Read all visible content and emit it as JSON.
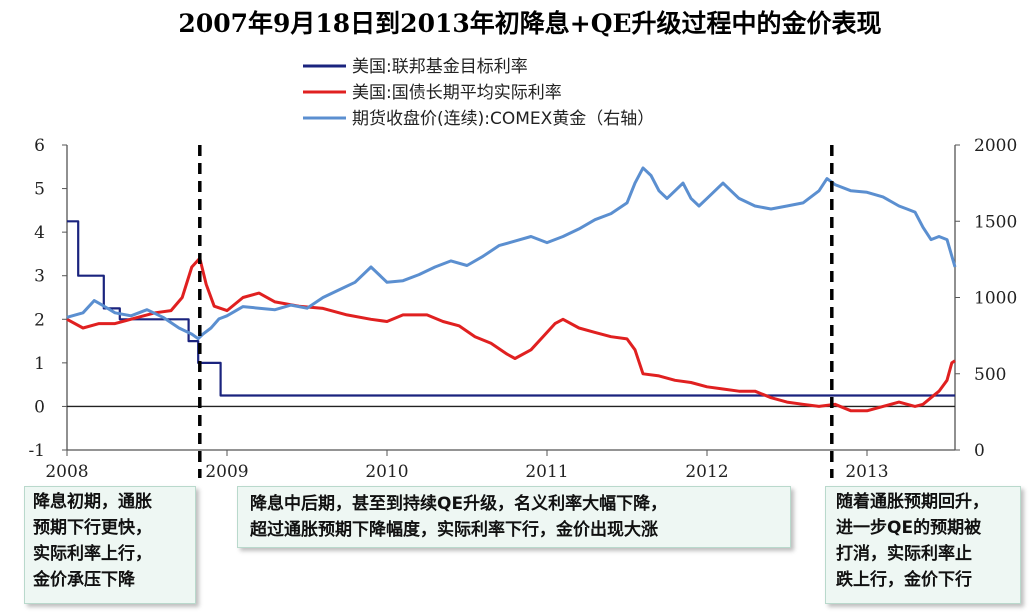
{
  "chart_data": {
    "type": "line",
    "title": "2007年9月18日到2013年初降息+QE升级过程中的金价表现",
    "legend_position": "top",
    "x_ticks": [
      "2008",
      "2009",
      "2010",
      "2011",
      "2012",
      "2013"
    ],
    "y_left_ticks": [
      "6",
      "5",
      "4",
      "3",
      "2",
      "1",
      "0",
      "-1"
    ],
    "y_left_range": [
      -1,
      6
    ],
    "y_right_ticks": [
      "2000",
      "1500",
      "1000",
      "500",
      "0"
    ],
    "y_right_range": [
      0,
      2000
    ],
    "x_range": [
      2008.0,
      2013.55
    ],
    "grid": false,
    "series": [
      {
        "name": "美国:联邦基金目标利率",
        "axis": "left",
        "color": "#1a237e",
        "points": [
          [
            2008.0,
            4.25
          ],
          [
            2008.07,
            4.25
          ],
          [
            2008.07,
            3.0
          ],
          [
            2008.23,
            3.0
          ],
          [
            2008.23,
            2.25
          ],
          [
            2008.33,
            2.25
          ],
          [
            2008.33,
            2.0
          ],
          [
            2008.76,
            2.0
          ],
          [
            2008.76,
            1.5
          ],
          [
            2008.82,
            1.5
          ],
          [
            2008.82,
            1.0
          ],
          [
            2008.96,
            1.0
          ],
          [
            2008.96,
            0.25
          ],
          [
            2013.55,
            0.25
          ]
        ]
      },
      {
        "name": "美国:国债长期平均实际利率",
        "axis": "left",
        "color": "#e02020",
        "points": [
          [
            2008.0,
            2.0
          ],
          [
            2008.1,
            1.8
          ],
          [
            2008.2,
            1.9
          ],
          [
            2008.3,
            1.9
          ],
          [
            2008.45,
            2.05
          ],
          [
            2008.55,
            2.15
          ],
          [
            2008.65,
            2.2
          ],
          [
            2008.72,
            2.5
          ],
          [
            2008.78,
            3.2
          ],
          [
            2008.83,
            3.4
          ],
          [
            2008.87,
            2.8
          ],
          [
            2008.92,
            2.3
          ],
          [
            2009.0,
            2.2
          ],
          [
            2009.1,
            2.5
          ],
          [
            2009.2,
            2.6
          ],
          [
            2009.3,
            2.4
          ],
          [
            2009.45,
            2.3
          ],
          [
            2009.6,
            2.25
          ],
          [
            2009.75,
            2.1
          ],
          [
            2009.9,
            2.0
          ],
          [
            2010.0,
            1.95
          ],
          [
            2010.1,
            2.1
          ],
          [
            2010.25,
            2.1
          ],
          [
            2010.35,
            1.95
          ],
          [
            2010.45,
            1.85
          ],
          [
            2010.55,
            1.6
          ],
          [
            2010.65,
            1.45
          ],
          [
            2010.75,
            1.2
          ],
          [
            2010.8,
            1.1
          ],
          [
            2010.9,
            1.3
          ],
          [
            2011.0,
            1.7
          ],
          [
            2011.05,
            1.9
          ],
          [
            2011.1,
            2.0
          ],
          [
            2011.2,
            1.8
          ],
          [
            2011.3,
            1.7
          ],
          [
            2011.4,
            1.6
          ],
          [
            2011.5,
            1.55
          ],
          [
            2011.55,
            1.3
          ],
          [
            2011.6,
            0.75
          ],
          [
            2011.7,
            0.7
          ],
          [
            2011.8,
            0.6
          ],
          [
            2011.9,
            0.55
          ],
          [
            2012.0,
            0.45
          ],
          [
            2012.1,
            0.4
          ],
          [
            2012.2,
            0.35
          ],
          [
            2012.3,
            0.35
          ],
          [
            2012.4,
            0.2
          ],
          [
            2012.5,
            0.1
          ],
          [
            2012.6,
            0.05
          ],
          [
            2012.7,
            0.0
          ],
          [
            2012.8,
            0.05
          ],
          [
            2012.9,
            -0.1
          ],
          [
            2013.0,
            -0.1
          ],
          [
            2013.1,
            0.0
          ],
          [
            2013.2,
            0.1
          ],
          [
            2013.3,
            0.0
          ],
          [
            2013.35,
            0.05
          ],
          [
            2013.4,
            0.2
          ],
          [
            2013.45,
            0.35
          ],
          [
            2013.5,
            0.6
          ],
          [
            2013.53,
            1.0
          ],
          [
            2013.55,
            1.05
          ]
        ]
      },
      {
        "name": "期货收盘价(连续):COMEX黄金（右轴）",
        "axis": "right",
        "color": "#5b8fd0",
        "points": [
          [
            2008.0,
            870
          ],
          [
            2008.1,
            900
          ],
          [
            2008.17,
            980
          ],
          [
            2008.22,
            950
          ],
          [
            2008.3,
            900
          ],
          [
            2008.4,
            880
          ],
          [
            2008.5,
            920
          ],
          [
            2008.6,
            870
          ],
          [
            2008.7,
            800
          ],
          [
            2008.78,
            760
          ],
          [
            2008.82,
            730
          ],
          [
            2008.85,
            760
          ],
          [
            2008.9,
            800
          ],
          [
            2008.95,
            860
          ],
          [
            2009.0,
            880
          ],
          [
            2009.1,
            940
          ],
          [
            2009.2,
            930
          ],
          [
            2009.3,
            920
          ],
          [
            2009.4,
            950
          ],
          [
            2009.5,
            930
          ],
          [
            2009.6,
            1000
          ],
          [
            2009.7,
            1050
          ],
          [
            2009.8,
            1100
          ],
          [
            2009.9,
            1200
          ],
          [
            2009.95,
            1150
          ],
          [
            2010.0,
            1100
          ],
          [
            2010.1,
            1110
          ],
          [
            2010.2,
            1150
          ],
          [
            2010.3,
            1200
          ],
          [
            2010.4,
            1240
          ],
          [
            2010.5,
            1210
          ],
          [
            2010.6,
            1270
          ],
          [
            2010.7,
            1340
          ],
          [
            2010.8,
            1370
          ],
          [
            2010.9,
            1400
          ],
          [
            2011.0,
            1360
          ],
          [
            2011.1,
            1400
          ],
          [
            2011.2,
            1450
          ],
          [
            2011.3,
            1510
          ],
          [
            2011.4,
            1550
          ],
          [
            2011.5,
            1620
          ],
          [
            2011.55,
            1750
          ],
          [
            2011.6,
            1850
          ],
          [
            2011.65,
            1800
          ],
          [
            2011.7,
            1700
          ],
          [
            2011.75,
            1650
          ],
          [
            2011.8,
            1700
          ],
          [
            2011.85,
            1750
          ],
          [
            2011.9,
            1650
          ],
          [
            2011.95,
            1600
          ],
          [
            2012.0,
            1650
          ],
          [
            2012.1,
            1750
          ],
          [
            2012.15,
            1700
          ],
          [
            2012.2,
            1650
          ],
          [
            2012.3,
            1600
          ],
          [
            2012.4,
            1580
          ],
          [
            2012.5,
            1600
          ],
          [
            2012.6,
            1620
          ],
          [
            2012.7,
            1700
          ],
          [
            2012.75,
            1780
          ],
          [
            2012.8,
            1740
          ],
          [
            2012.9,
            1700
          ],
          [
            2013.0,
            1690
          ],
          [
            2013.1,
            1660
          ],
          [
            2013.2,
            1600
          ],
          [
            2013.25,
            1580
          ],
          [
            2013.3,
            1560
          ],
          [
            2013.35,
            1460
          ],
          [
            2013.4,
            1380
          ],
          [
            2013.45,
            1400
          ],
          [
            2013.5,
            1380
          ],
          [
            2013.55,
            1200
          ]
        ]
      }
    ],
    "dashed_markers_x": [
      2008.83,
      2012.78
    ]
  },
  "annotations": {
    "left_lines": [
      "降息初期，通胀",
      "预期下行更快，",
      "实际利率上行，",
      "金价承压下降"
    ],
    "middle_lines": [
      "降息中后期，甚至到持续QE升级，名义利率大幅下降，",
      "超过通胀预期下降幅度，实际利率下行，金价出现大涨"
    ],
    "right_lines": [
      "随着通胀预期回升，",
      "进一步QE的预期被",
      "打消，实际利率止",
      "跌上行，金价下行"
    ]
  }
}
